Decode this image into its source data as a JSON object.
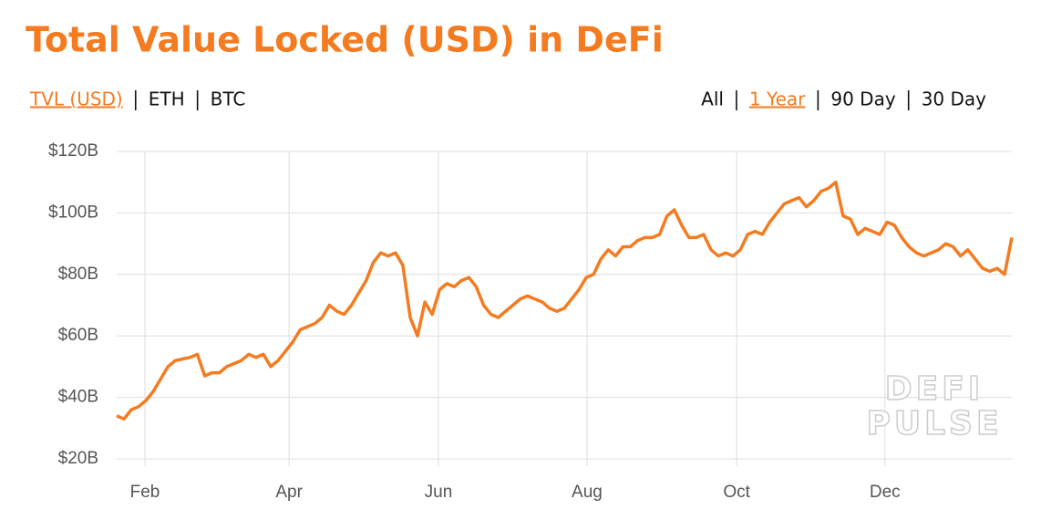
{
  "chart_data": {
    "type": "line",
    "title": "Total Value Locked (USD) in DeFi",
    "color": "#f47b20",
    "tabs": {
      "metric": [
        {
          "label": "TVL (USD)",
          "selected": true
        },
        {
          "label": "ETH",
          "selected": false
        },
        {
          "label": "BTC",
          "selected": false
        }
      ],
      "range": [
        {
          "label": "All",
          "selected": false
        },
        {
          "label": "1 Year",
          "selected": true
        },
        {
          "label": "90 Day",
          "selected": false
        },
        {
          "label": "30 Day",
          "selected": false
        }
      ]
    },
    "watermark": [
      "DEFI",
      "PULSE"
    ],
    "values": [
      34,
      33,
      36,
      37,
      39,
      42,
      46,
      50,
      52,
      52.5,
      53,
      54,
      47,
      48,
      48,
      50,
      51,
      52,
      54,
      53,
      54,
      50,
      52,
      55,
      58,
      62,
      63,
      64,
      66,
      70,
      68,
      67,
      70,
      74,
      78,
      84,
      87,
      86,
      87,
      83,
      66,
      60,
      71,
      67,
      75,
      77,
      76,
      78,
      79,
      76,
      70,
      67,
      66,
      68,
      70,
      72,
      73,
      72,
      71,
      69,
      68,
      69,
      72,
      75,
      79,
      80,
      85,
      88,
      86,
      89,
      89,
      91,
      92,
      92,
      93,
      99,
      101,
      96,
      92,
      92,
      93,
      88,
      86,
      87,
      86,
      88,
      93,
      94,
      93,
      97,
      100,
      103,
      104,
      105,
      102,
      104,
      107,
      108,
      110,
      99,
      98,
      93,
      95,
      94,
      93,
      97,
      96,
      92,
      89,
      87,
      86,
      87,
      88,
      90,
      89,
      86,
      88,
      85,
      82,
      81,
      82,
      80,
      92
    ],
    "xlim": [
      0,
      122
    ],
    "xticks": [
      {
        "value": 3.85,
        "label": "Feb"
      },
      {
        "value": 23.5,
        "label": "Apr"
      },
      {
        "value": 43.85,
        "label": "Jun"
      },
      {
        "value": 64.1,
        "label": "Aug"
      },
      {
        "value": 84.5,
        "label": "Oct"
      },
      {
        "value": 104.7,
        "label": "Dec"
      }
    ],
    "ylim": [
      20,
      120
    ],
    "yticks": [
      {
        "value": 20,
        "label": "$20B"
      },
      {
        "value": 40,
        "label": "$40B"
      },
      {
        "value": 60,
        "label": "$60B"
      },
      {
        "value": 80,
        "label": "$80B"
      },
      {
        "value": 100,
        "label": "$100B"
      },
      {
        "value": 120,
        "label": "$120B"
      }
    ],
    "grid": true
  }
}
